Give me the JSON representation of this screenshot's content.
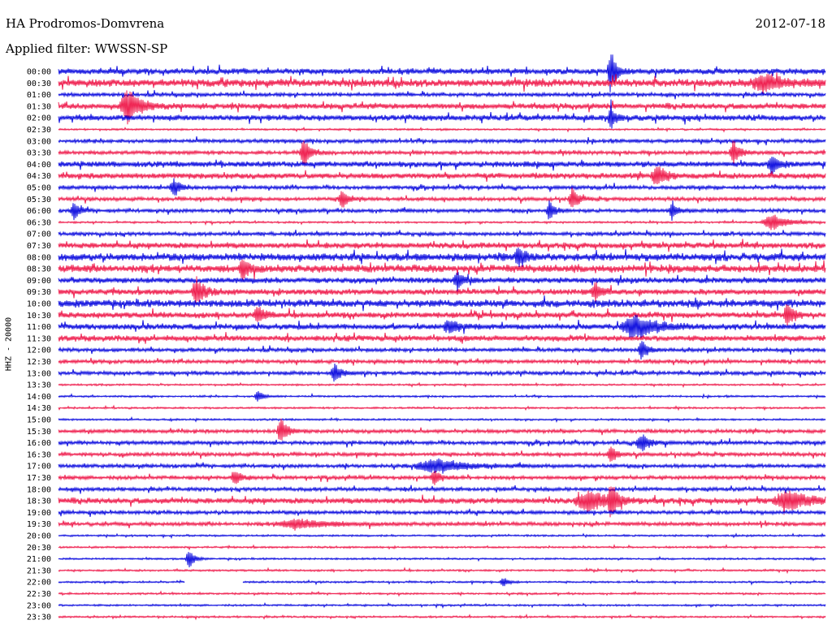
{
  "header": {
    "station": "HA Prodromos-Domvrena",
    "date": "2012-07-18",
    "filter": "Applied filter: WWSSN-SP"
  },
  "y_axis_label": "HHZ - 20000",
  "colors": {
    "odd": "#0000dd",
    "even": "#ee1144"
  },
  "chart_data": {
    "type": "line",
    "title": "HA Prodromos-Domvrena",
    "subtitle": "Applied filter: WWSSN-SP",
    "ylabel": "HHZ - 20000",
    "row_labels": [
      "00:00",
      "00:30",
      "01:00",
      "01:30",
      "02:00",
      "02:30",
      "03:00",
      "03:30",
      "04:00",
      "04:30",
      "05:00",
      "05:30",
      "06:00",
      "06:30",
      "07:00",
      "07:30",
      "08:00",
      "08:30",
      "09:00",
      "09:30",
      "10:00",
      "10:30",
      "11:00",
      "11:30",
      "12:00",
      "12:30",
      "13:00",
      "13:30",
      "14:00",
      "14:30",
      "15:00",
      "15:30",
      "16:00",
      "16:30",
      "17:00",
      "17:30",
      "18:00",
      "18:30",
      "19:00",
      "19:30",
      "20:00",
      "20:30",
      "21:00",
      "21:30",
      "22:00",
      "22:30",
      "23:00",
      "23:30"
    ],
    "series_colors": [
      "#0000dd",
      "#ee1144"
    ],
    "row_noise_levels": [
      3,
      4,
      2,
      3,
      3,
      1,
      2,
      2,
      3,
      3,
      2,
      2,
      2,
      1,
      2,
      3,
      4,
      4,
      3,
      3,
      4,
      3,
      3,
      3,
      2,
      2,
      2,
      1,
      1,
      1,
      1,
      2,
      2,
      2,
      2,
      2,
      2,
      3,
      2,
      2,
      1,
      1,
      1,
      1,
      1,
      1,
      1,
      1
    ],
    "events": [
      {
        "row": 0,
        "x": 0.72,
        "amp": 28,
        "w": 0.005
      },
      {
        "row": 1,
        "x": 0.92,
        "amp": 10,
        "w": 0.02
      },
      {
        "row": 3,
        "x": 0.09,
        "amp": 20,
        "w": 0.012
      },
      {
        "row": 4,
        "x": 0.72,
        "amp": 16,
        "w": 0.004
      },
      {
        "row": 7,
        "x": 0.32,
        "amp": 18,
        "w": 0.006
      },
      {
        "row": 7,
        "x": 0.88,
        "amp": 15,
        "w": 0.006
      },
      {
        "row": 8,
        "x": 0.93,
        "amp": 12,
        "w": 0.006
      },
      {
        "row": 9,
        "x": 0.78,
        "amp": 14,
        "w": 0.008
      },
      {
        "row": 10,
        "x": 0.15,
        "amp": 12,
        "w": 0.006
      },
      {
        "row": 11,
        "x": 0.37,
        "amp": 12,
        "w": 0.006
      },
      {
        "row": 11,
        "x": 0.67,
        "amp": 14,
        "w": 0.006
      },
      {
        "row": 12,
        "x": 0.02,
        "amp": 12,
        "w": 0.005
      },
      {
        "row": 12,
        "x": 0.64,
        "amp": 12,
        "w": 0.005
      },
      {
        "row": 12,
        "x": 0.8,
        "amp": 12,
        "w": 0.005
      },
      {
        "row": 13,
        "x": 0.93,
        "amp": 10,
        "w": 0.015
      },
      {
        "row": 16,
        "x": 0.6,
        "amp": 15,
        "w": 0.006
      },
      {
        "row": 17,
        "x": 0.24,
        "amp": 14,
        "w": 0.006
      },
      {
        "row": 18,
        "x": 0.52,
        "amp": 12,
        "w": 0.006
      },
      {
        "row": 19,
        "x": 0.18,
        "amp": 18,
        "w": 0.007
      },
      {
        "row": 19,
        "x": 0.7,
        "amp": 10,
        "w": 0.006
      },
      {
        "row": 21,
        "x": 0.26,
        "amp": 12,
        "w": 0.006
      },
      {
        "row": 21,
        "x": 0.95,
        "amp": 16,
        "w": 0.006
      },
      {
        "row": 22,
        "x": 0.75,
        "amp": 14,
        "w": 0.02
      },
      {
        "row": 22,
        "x": 0.51,
        "amp": 8,
        "w": 0.01
      },
      {
        "row": 24,
        "x": 0.76,
        "amp": 14,
        "w": 0.005
      },
      {
        "row": 26,
        "x": 0.36,
        "amp": 12,
        "w": 0.006
      },
      {
        "row": 28,
        "x": 0.26,
        "amp": 8,
        "w": 0.005
      },
      {
        "row": 31,
        "x": 0.29,
        "amp": 16,
        "w": 0.006
      },
      {
        "row": 32,
        "x": 0.76,
        "amp": 12,
        "w": 0.008
      },
      {
        "row": 33,
        "x": 0.72,
        "amp": 12,
        "w": 0.005
      },
      {
        "row": 34,
        "x": 0.49,
        "amp": 8,
        "w": 0.03
      },
      {
        "row": 35,
        "x": 0.23,
        "amp": 9,
        "w": 0.006
      },
      {
        "row": 35,
        "x": 0.49,
        "amp": 9,
        "w": 0.006
      },
      {
        "row": 37,
        "x": 0.69,
        "amp": 12,
        "w": 0.02
      },
      {
        "row": 37,
        "x": 0.72,
        "amp": 22,
        "w": 0.005
      },
      {
        "row": 37,
        "x": 0.95,
        "amp": 12,
        "w": 0.02
      },
      {
        "row": 39,
        "x": 0.31,
        "amp": 6,
        "w": 0.03
      },
      {
        "row": 42,
        "x": 0.17,
        "amp": 12,
        "w": 0.005
      },
      {
        "row": 44,
        "x": 0.58,
        "amp": 6,
        "w": 0.005
      }
    ],
    "data_gaps": [
      {
        "row": 44,
        "from": 0.165,
        "to": 0.24
      }
    ]
  }
}
